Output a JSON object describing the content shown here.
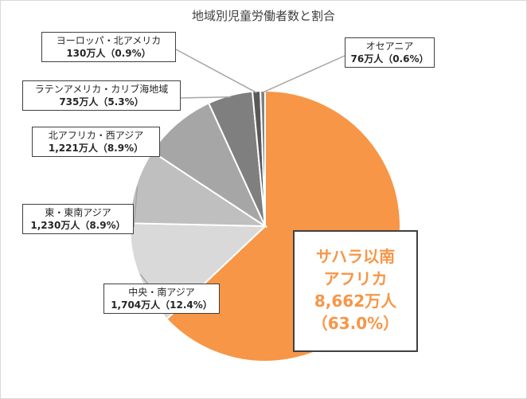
{
  "chart_data": {
    "type": "pie",
    "title": "地域別児童労働者数と割合",
    "start_angle_deg": 0,
    "direction": "clockwise",
    "slices": [
      {
        "name": "サハラ以南アフリカ",
        "name_lines": [
          "サハラ以南",
          "アフリカ"
        ],
        "value": 8662,
        "value_text": "8,662万人",
        "percent_text": "（63.0%）",
        "color": "#f79646"
      },
      {
        "name": "中央・南アジア",
        "value": 1704,
        "value_text": "1,704万人（12.4%）",
        "color": "#d9d9d9"
      },
      {
        "name": "東・東南アジア",
        "value": 1230,
        "value_text": "1,230万人（8.9%）",
        "color": "#bfbfbf"
      },
      {
        "name": "北アフリカ・西アジア",
        "value": 1221,
        "value_text": "1,221万人（8.9%）",
        "color": "#a6a6a6"
      },
      {
        "name": "ラテンアメリカ・カリブ海地域",
        "value": 735,
        "value_text": "735万人（5.3%）",
        "color": "#7f7f7f"
      },
      {
        "name": "ヨーロッパ・北アメリカ",
        "value": 130,
        "value_text": "130万人（0.9%）",
        "color": "#595959"
      },
      {
        "name": "オセアニア",
        "value": 76,
        "value_text": "76万人（0.6%）",
        "color": "#7f7f7f"
      }
    ],
    "legend": "none"
  }
}
